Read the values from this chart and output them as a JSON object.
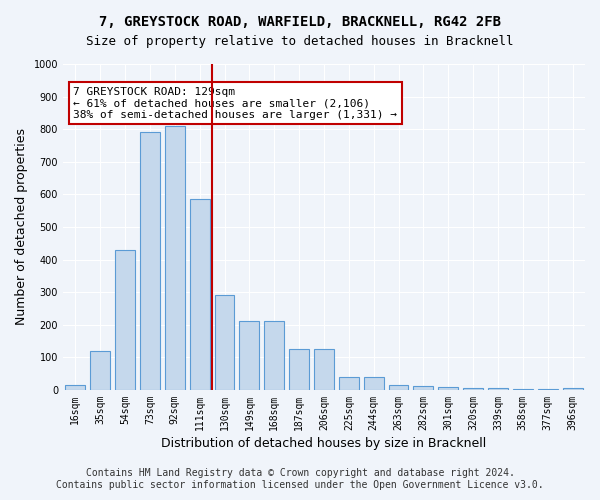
{
  "title1": "7, GREYSTOCK ROAD, WARFIELD, BRACKNELL, RG42 2FB",
  "title2": "Size of property relative to detached houses in Bracknell",
  "xlabel": "Distribution of detached houses by size in Bracknell",
  "ylabel": "Number of detached properties",
  "categories": [
    "16sqm",
    "35sqm",
    "54sqm",
    "73sqm",
    "92sqm",
    "111sqm",
    "130sqm",
    "149sqm",
    "168sqm",
    "187sqm",
    "206sqm",
    "225sqm",
    "244sqm",
    "263sqm",
    "282sqm",
    "301sqm",
    "320sqm",
    "339sqm",
    "358sqm",
    "377sqm",
    "396sqm"
  ],
  "values": [
    15,
    120,
    430,
    790,
    810,
    585,
    290,
    210,
    210,
    125,
    125,
    40,
    40,
    15,
    12,
    8,
    5,
    5,
    3,
    3,
    5
  ],
  "bar_color": "#c5d8ec",
  "bar_edge_color": "#5b9bd5",
  "bar_width": 0.8,
  "vline_x": 5.5,
  "vline_color": "#c00000",
  "annotation_text": "7 GREYSTOCK ROAD: 129sqm\n← 61% of detached houses are smaller (2,106)\n38% of semi-detached houses are larger (1,331) →",
  "annotation_box_color": "#ffffff",
  "annotation_box_edge_color": "#c00000",
  "ylim": [
    0,
    1000
  ],
  "yticks": [
    0,
    100,
    200,
    300,
    400,
    500,
    600,
    700,
    800,
    900,
    1000
  ],
  "footer1": "Contains HM Land Registry data © Crown copyright and database right 2024.",
  "footer2": "Contains public sector information licensed under the Open Government Licence v3.0.",
  "bg_color": "#f0f4fa",
  "plot_bg_color": "#f0f4fa",
  "grid_color": "#ffffff",
  "title_fontsize": 10,
  "subtitle_fontsize": 9,
  "axis_label_fontsize": 9,
  "tick_fontsize": 7,
  "footer_fontsize": 7,
  "annotation_fontsize": 8
}
